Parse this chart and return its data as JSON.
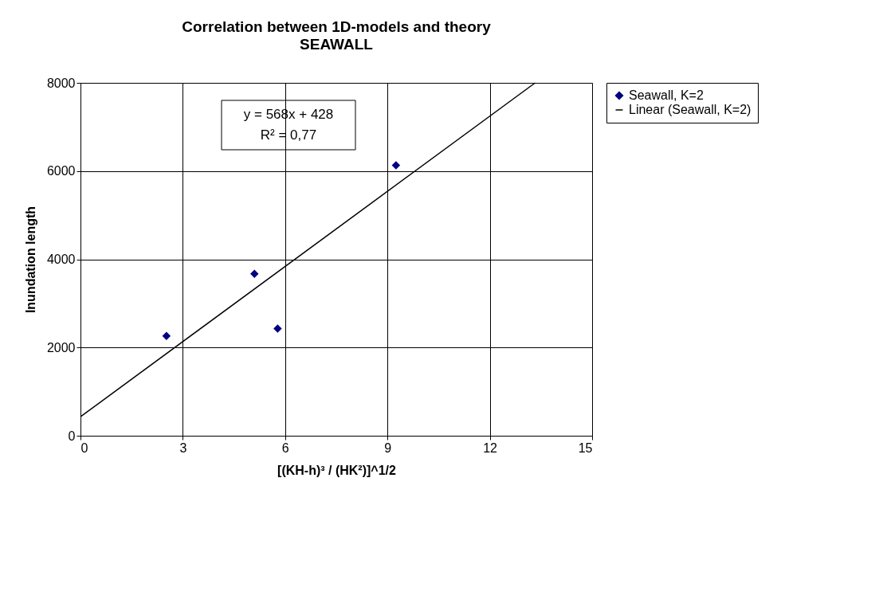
{
  "chart_data": {
    "type": "scatter",
    "title": "Correlation between 1D-models and theory",
    "subtitle": "SEAWALL",
    "xlabel": "[(KH-h)³ / (HK²)]^1/2",
    "ylabel": "Inundation length",
    "series": [
      {
        "name": "Seawall, K=2",
        "color": "#000080",
        "x": [
          2.52,
          5.1,
          5.78,
          9.25
        ],
        "values": [
          2260,
          3670,
          2430,
          6130
        ],
        "marker": "diamond"
      },
      {
        "name": "Linear (Seawall, K=2)",
        "type": "line",
        "color": "#000000",
        "x": [
          0,
          13.33
        ],
        "values": [
          430,
          8000
        ],
        "marker": "none",
        "line_style": "solid"
      }
    ],
    "annotations": [
      "y = 568x + 428",
      "R² = 0,77"
    ],
    "xlim": [
      0,
      15
    ],
    "xticks": [
      0,
      3,
      6,
      9,
      12,
      15
    ],
    "ylim": [
      0,
      8000
    ],
    "yticks": [
      0,
      2000,
      4000,
      6000,
      8000
    ],
    "grid": true,
    "legend": "right"
  }
}
